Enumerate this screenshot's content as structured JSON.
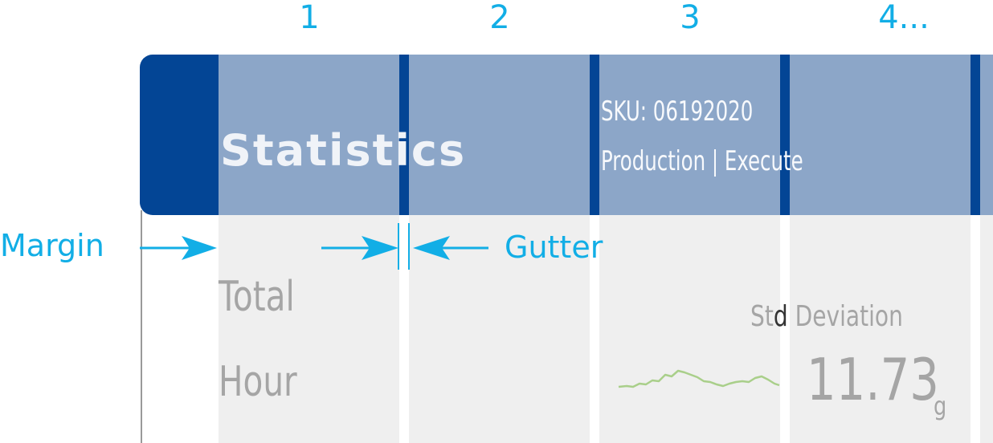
{
  "columns": [
    "1",
    "2",
    "3",
    "4..."
  ],
  "header": {
    "title": "Statistics",
    "sku": "SKU: 06192020",
    "subtitle": "Production | Execute"
  },
  "metrics": {
    "total_label": "Total",
    "hour_label": "Hour",
    "std_label_pre": "St",
    "std_label_hl": "d",
    "std_label_post": " Deviation",
    "std_value": "11.73",
    "std_unit": "g"
  },
  "annotations": {
    "margin": "Margin",
    "gutter": "Gutter"
  },
  "colors": {
    "accent": "#12aee6",
    "header_dark": "#034595",
    "header_light": "#8ca6c8",
    "body_bg": "#efefef",
    "sparkline": "#a9cf8a",
    "muted_text": "#a5a5a5"
  }
}
